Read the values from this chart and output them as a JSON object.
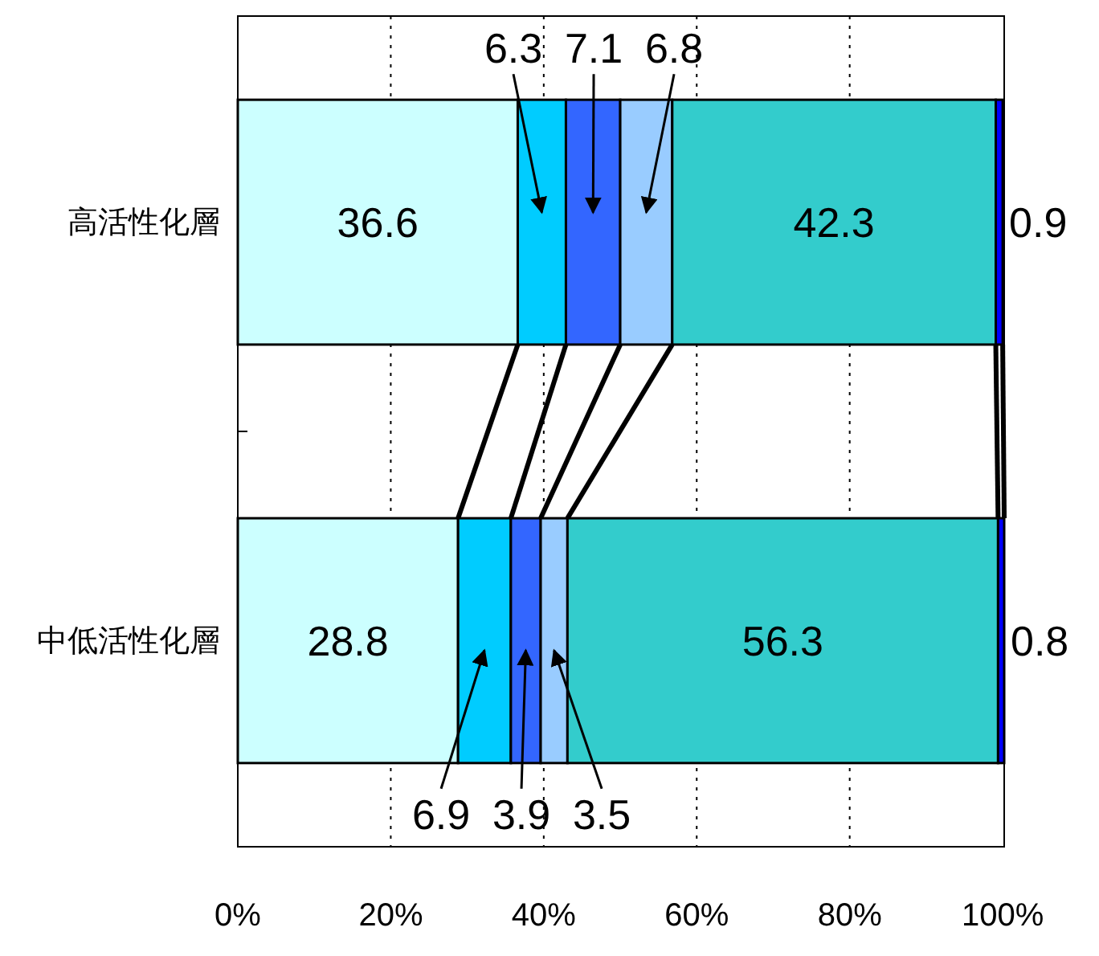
{
  "chart_data": {
    "type": "bar",
    "orientation": "horizontal",
    "stacked": true,
    "categories": [
      "高活性化層",
      "中低活性化層"
    ],
    "series": [
      {
        "color": "#ccffff",
        "values": [
          36.6,
          28.8
        ]
      },
      {
        "color": "#00ccff",
        "values": [
          6.3,
          6.9
        ]
      },
      {
        "color": "#3366ff",
        "values": [
          7.1,
          3.9
        ]
      },
      {
        "color": "#99ccff",
        "values": [
          6.8,
          3.5
        ]
      },
      {
        "color": "#33cccc",
        "values": [
          42.3,
          56.3
        ]
      },
      {
        "color": "#0000ff",
        "values": [
          0.9,
          0.8
        ]
      }
    ],
    "xlim": [
      0,
      100.2
    ],
    "xticks": [
      {
        "value": 0,
        "label": "0%"
      },
      {
        "value": 20,
        "label": "20%"
      },
      {
        "value": 40,
        "label": "40%"
      },
      {
        "value": 60,
        "label": "60%"
      },
      {
        "value": 80,
        "label": "80%"
      },
      {
        "value": 100,
        "label": "100%"
      }
    ],
    "grid": "x",
    "data_labels": true
  }
}
